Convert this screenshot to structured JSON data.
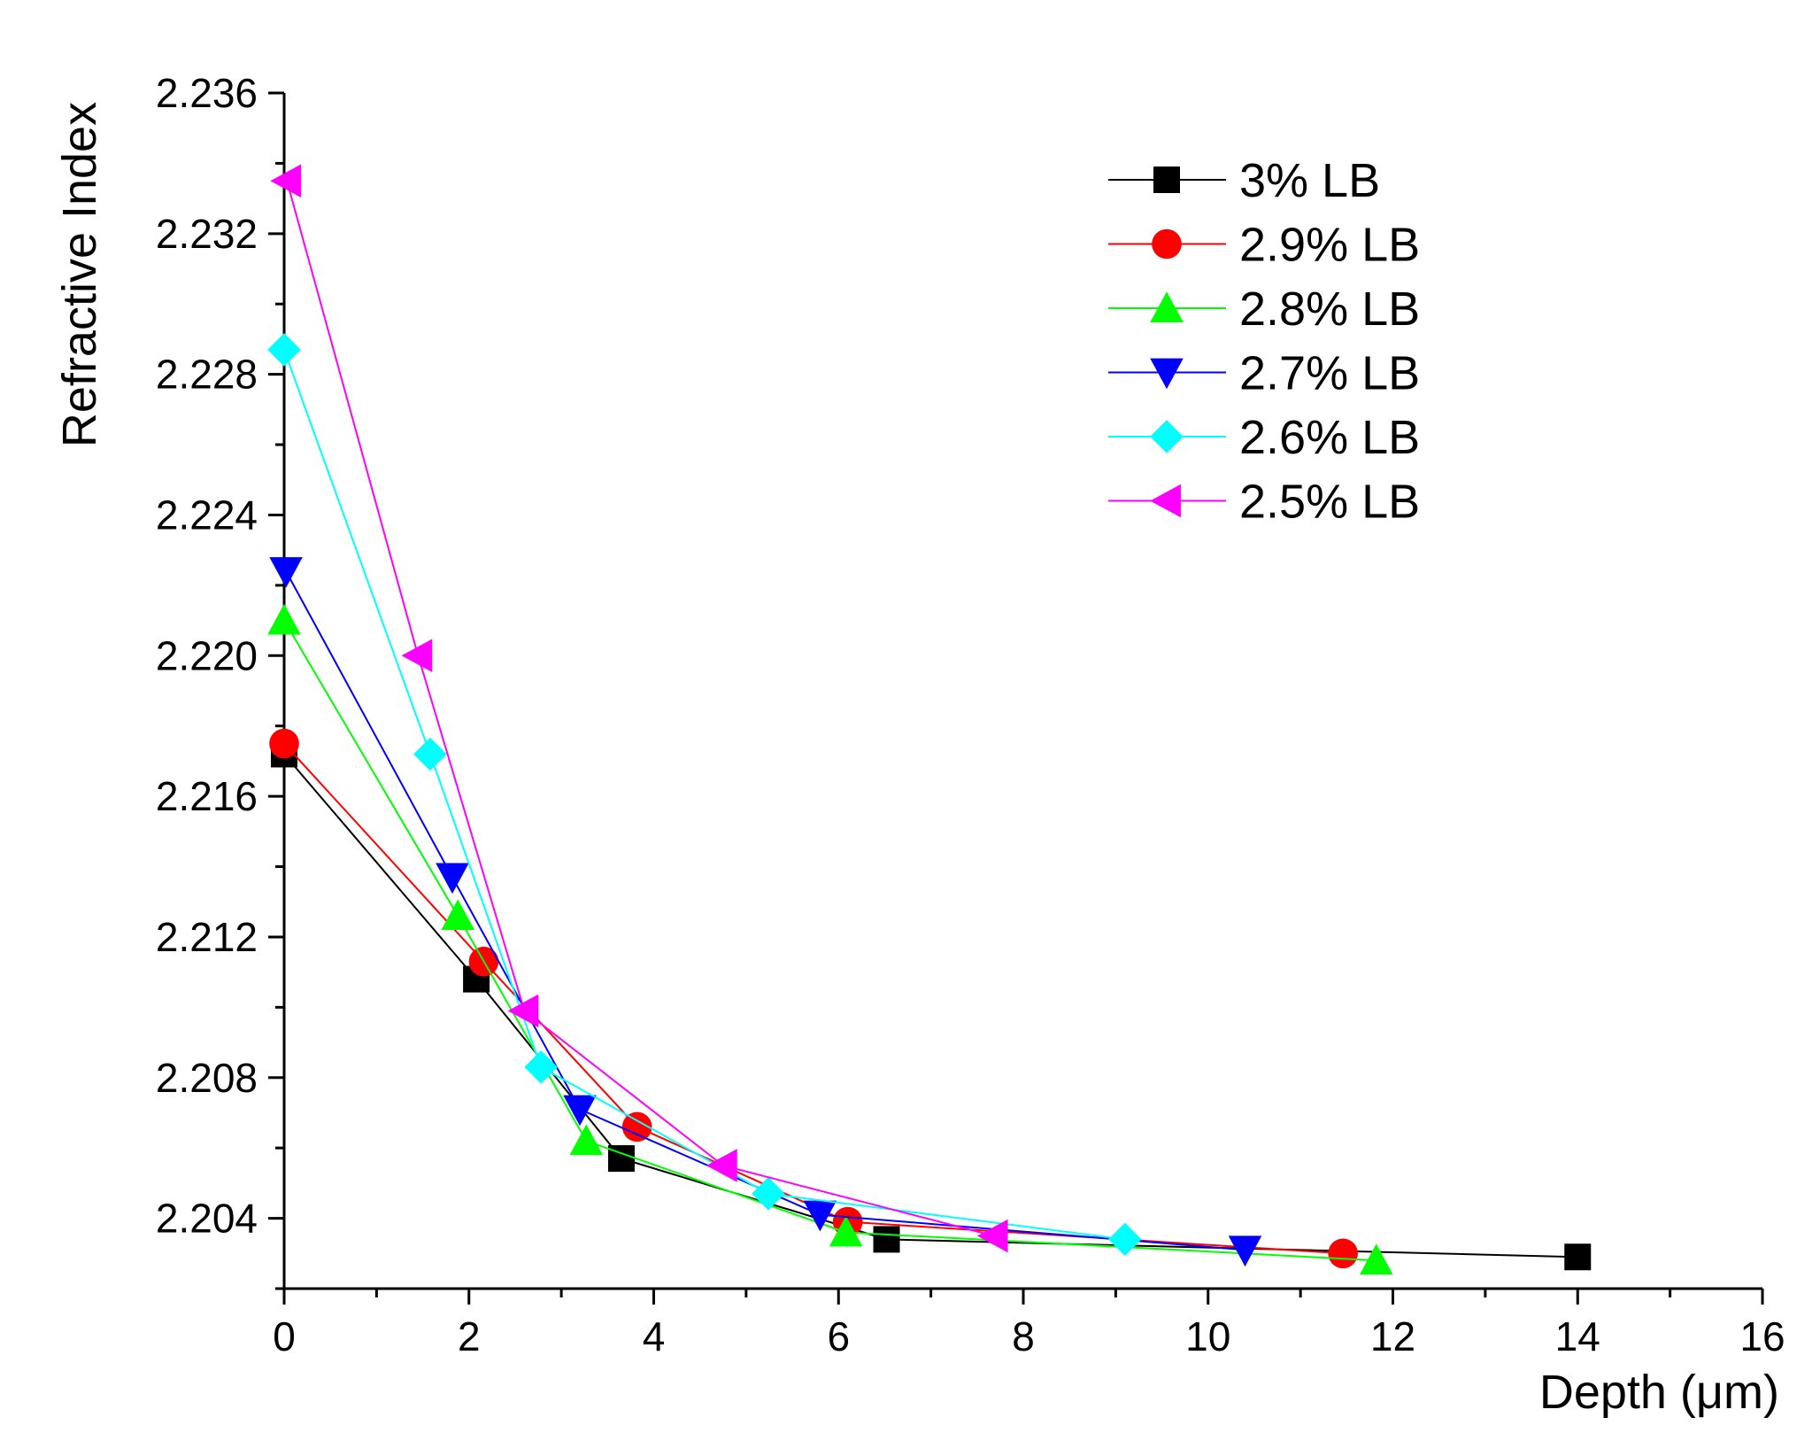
{
  "chart_data": {
    "type": "line",
    "title": "",
    "xlabel": "Depth (μm)",
    "ylabel": "Refractive Index",
    "xlim": [
      0,
      16
    ],
    "ylim": [
      2.202,
      2.236
    ],
    "xticks": [
      0,
      2,
      4,
      6,
      8,
      10,
      12,
      14,
      16
    ],
    "xtick_labels": [
      "0",
      "2",
      "4",
      "6",
      "8",
      "10",
      "12",
      "14",
      "16"
    ],
    "yticks": [
      2.204,
      2.208,
      2.212,
      2.216,
      2.22,
      2.224,
      2.228,
      2.232,
      2.236
    ],
    "ytick_labels": [
      "2.204",
      "2.208",
      "2.212",
      "2.216",
      "2.220",
      "2.224",
      "2.228",
      "2.232",
      "2.236"
    ],
    "grid": false,
    "legend_position": "top-right",
    "series": [
      {
        "name": "3% LB",
        "color": "#000000",
        "marker": "square",
        "x": [
          0.0,
          2.08,
          3.65,
          6.52,
          14.0
        ],
        "y": [
          2.2172,
          2.2108,
          2.2057,
          2.2034,
          2.2029
        ]
      },
      {
        "name": "2.9% LB",
        "color": "#ff0000",
        "marker": "circle",
        "x": [
          0.0,
          2.16,
          3.82,
          6.1,
          11.46
        ],
        "y": [
          2.2175,
          2.2113,
          2.2066,
          2.2039,
          2.203
        ]
      },
      {
        "name": "2.8% LB",
        "color": "#00ff00",
        "marker": "triangle-up",
        "x": [
          0.0,
          1.88,
          3.27,
          6.08,
          11.82
        ],
        "y": [
          2.221,
          2.2126,
          2.2062,
          2.2036,
          2.2028
        ]
      },
      {
        "name": "2.7% LB",
        "color": "#0000ff",
        "marker": "triangle-down",
        "x": [
          0.02,
          1.82,
          3.2,
          5.8,
          10.4
        ],
        "y": [
          2.2224,
          2.2137,
          2.2071,
          2.2041,
          2.2031
        ]
      },
      {
        "name": "2.6% LB",
        "color": "#00ffff",
        "marker": "diamond",
        "x": [
          0.0,
          1.58,
          2.78,
          5.24,
          9.1
        ],
        "y": [
          2.2287,
          2.2172,
          2.2083,
          2.2047,
          2.2034
        ]
      },
      {
        "name": "2.5% LB",
        "color": "#ff00ff",
        "marker": "triangle-left",
        "x": [
          0.03,
          1.45,
          2.6,
          4.75,
          7.68
        ],
        "y": [
          2.2335,
          2.22,
          2.2099,
          2.2055,
          2.2035
        ]
      }
    ]
  }
}
